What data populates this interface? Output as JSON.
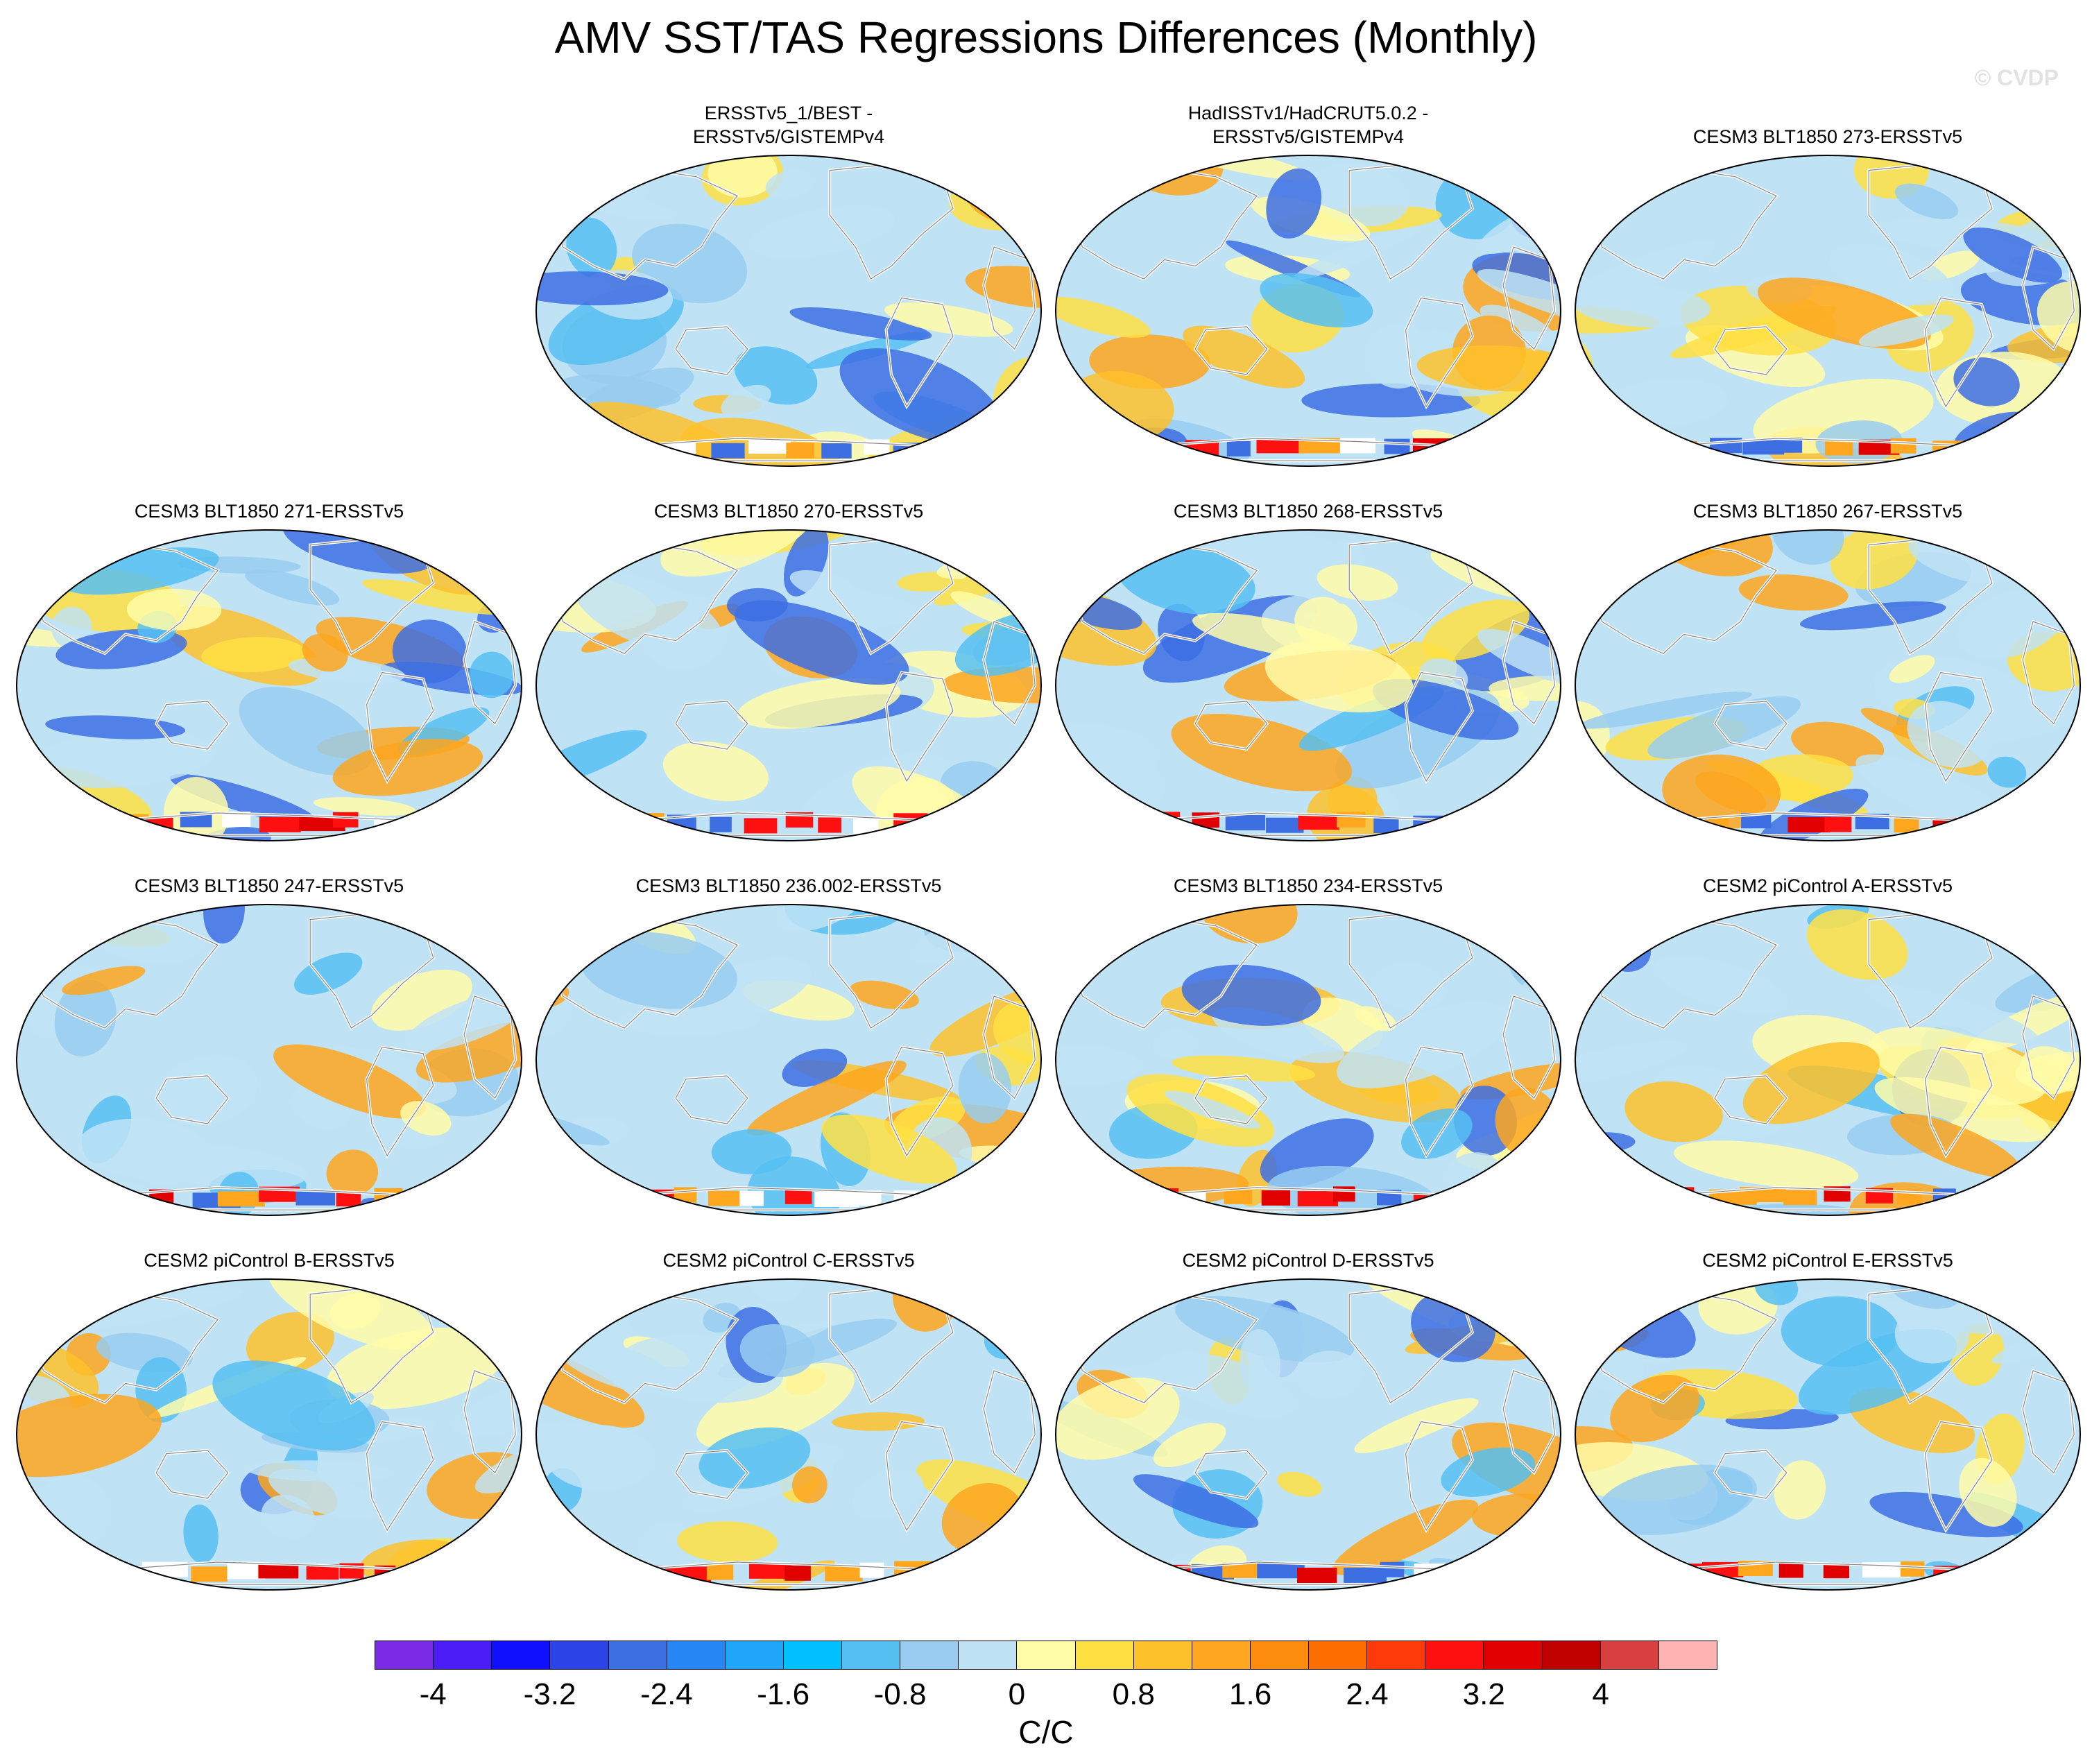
{
  "title": "AMV SST/TAS Regressions Differences (Monthly)",
  "watermark": "© CVDP",
  "panels": [
    {
      "id": "p01",
      "title": [
        "ERSSTv5_1/BEST -",
        "ERSSTv5/GISTEMPv4"
      ],
      "row": 0,
      "col": 1
    },
    {
      "id": "p02",
      "title": [
        "HadISSTv1/HadCRUT5.0.2 -",
        "ERSSTv5/GISTEMPv4"
      ],
      "row": 0,
      "col": 2
    },
    {
      "id": "p03",
      "title": [
        "CESM3 BLT1850 273-ERSSTv5"
      ],
      "row": 0,
      "col": 3
    },
    {
      "id": "p04",
      "title": [
        "CESM3 BLT1850 271-ERSSTv5"
      ],
      "row": 1,
      "col": 0
    },
    {
      "id": "p05",
      "title": [
        "CESM3 BLT1850 270-ERSSTv5"
      ],
      "row": 1,
      "col": 1
    },
    {
      "id": "p06",
      "title": [
        "CESM3 BLT1850 268-ERSSTv5"
      ],
      "row": 1,
      "col": 2
    },
    {
      "id": "p07",
      "title": [
        "CESM3 BLT1850 267-ERSSTv5"
      ],
      "row": 1,
      "col": 3
    },
    {
      "id": "p08",
      "title": [
        "CESM3 BLT1850 247-ERSSTv5"
      ],
      "row": 2,
      "col": 0
    },
    {
      "id": "p09",
      "title": [
        "CESM3 BLT1850 236.002-ERSSTv5"
      ],
      "row": 2,
      "col": 1
    },
    {
      "id": "p10",
      "title": [
        "CESM3 BLT1850 234-ERSSTv5"
      ],
      "row": 2,
      "col": 2
    },
    {
      "id": "p11",
      "title": [
        "CESM2 piControl A-ERSSTv5"
      ],
      "row": 2,
      "col": 3
    },
    {
      "id": "p12",
      "title": [
        "CESM2 piControl B-ERSSTv5"
      ],
      "row": 3,
      "col": 0
    },
    {
      "id": "p13",
      "title": [
        "CESM2 piControl C-ERSSTv5"
      ],
      "row": 3,
      "col": 1
    },
    {
      "id": "p14",
      "title": [
        "CESM2 piControl D-ERSSTv5"
      ],
      "row": 3,
      "col": 2
    },
    {
      "id": "p15",
      "title": [
        "CESM2 piControl E-ERSSTv5"
      ],
      "row": 3,
      "col": 3
    }
  ],
  "colorbar": {
    "colors": [
      "#7b2be6",
      "#4b1cf5",
      "#1010ff",
      "#2a44e8",
      "#3d6fe3",
      "#2787f5",
      "#1fa6f8",
      "#00c0ff",
      "#56bff2",
      "#98ccf0",
      "#bfe3f5",
      "#fffca8",
      "#ffe043",
      "#fdc12a",
      "#fda61e",
      "#fc8c0c",
      "#ff6e00",
      "#ff3a0a",
      "#ff1010",
      "#e10000",
      "#c10000",
      "#d84040",
      "#ffb3b3"
    ],
    "tick_labels": [
      "-4",
      "-3.2",
      "-2.4",
      "-1.6",
      "-0.8",
      "0",
      "0.8",
      "1.6",
      "2.4",
      "3.2",
      "4"
    ],
    "units": "C/C"
  }
}
